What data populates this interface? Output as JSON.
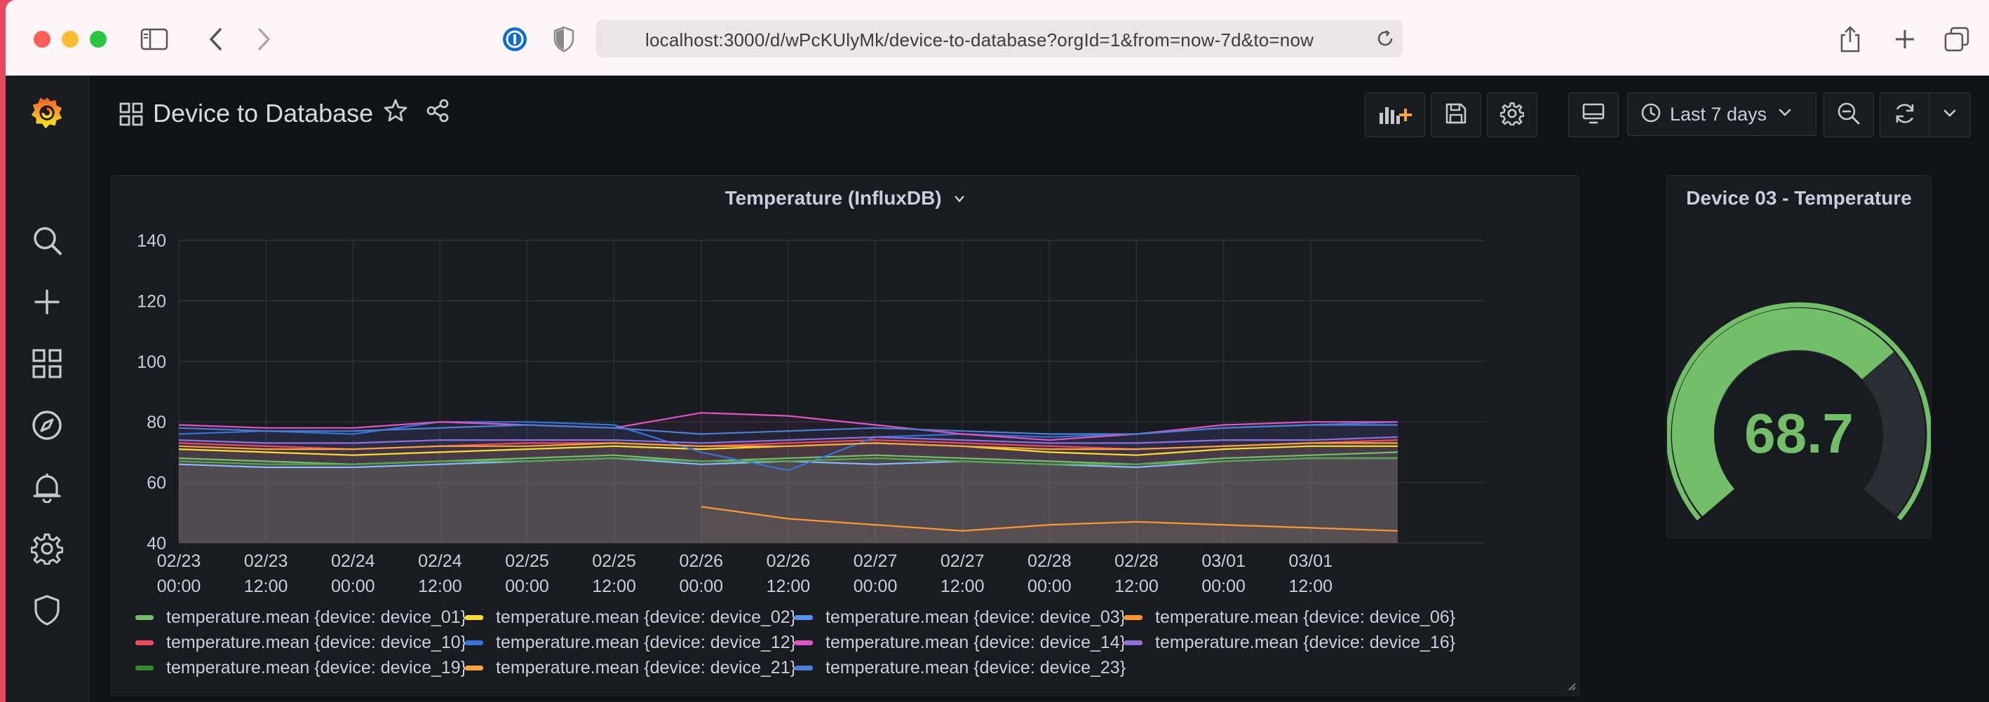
{
  "browser": {
    "url": "localhost:3000/d/wPcKUlyMk/device-to-database?orgId=1&from=now-7d&to=now"
  },
  "header": {
    "title": "Device to Database",
    "time_range": "Last 7 days"
  },
  "sidebar": {
    "items": [
      "grafana-logo-icon",
      "search-icon",
      "plus-icon",
      "dashboards-icon",
      "explore-icon",
      "alerting-icon",
      "configuration-icon",
      "server-admin-icon"
    ]
  },
  "temperature_panel": {
    "title": "Temperature (InfluxDB)",
    "legend": [
      {
        "label": "temperature.mean {device: device_01}",
        "color": "#73bf69"
      },
      {
        "label": "temperature.mean {device: device_02}",
        "color": "#fade2a"
      },
      {
        "label": "temperature.mean {device: device_03}",
        "color": "#5794f2"
      },
      {
        "label": "temperature.mean {device: device_06}",
        "color": "#ff9830"
      },
      {
        "label": "temperature.mean {device: device_10}",
        "color": "#f2495c"
      },
      {
        "label": "temperature.mean {device: device_12}",
        "color": "#3274d9"
      },
      {
        "label": "temperature.mean {device: device_14}",
        "color": "#e055c4"
      },
      {
        "label": "temperature.mean {device: device_16}",
        "color": "#8f6fd8"
      },
      {
        "label": "temperature.mean {device: device_19}",
        "color": "#37872d"
      },
      {
        "label": "temperature.mean {device: device_21}",
        "color": "#f9a43b"
      },
      {
        "label": "temperature.mean {device: device_23}",
        "color": "#4a7fd6"
      }
    ]
  },
  "chart_data": {
    "type": "line",
    "title": "Temperature (InfluxDB)",
    "ylim": [
      40,
      140
    ],
    "yticks": [
      40,
      60,
      80,
      100,
      120,
      140
    ],
    "xticks": [
      [
        "02/23",
        "00:00"
      ],
      [
        "02/23",
        "12:00"
      ],
      [
        "02/24",
        "00:00"
      ],
      [
        "02/24",
        "12:00"
      ],
      [
        "02/25",
        "00:00"
      ],
      [
        "02/25",
        "12:00"
      ],
      [
        "02/26",
        "00:00"
      ],
      [
        "02/26",
        "12:00"
      ],
      [
        "02/27",
        "00:00"
      ],
      [
        "02/27",
        "12:00"
      ],
      [
        "02/28",
        "00:00"
      ],
      [
        "02/28",
        "12:00"
      ],
      [
        "03/01",
        "00:00"
      ],
      [
        "03/01",
        "12:00"
      ]
    ],
    "grid": true,
    "legend_position": "bottom",
    "x_hours": [
      0,
      12,
      24,
      36,
      48,
      60,
      72,
      84,
      96,
      108,
      120,
      132,
      144,
      156,
      168
    ],
    "series": [
      {
        "name": "temperature.mean {device: device_01}",
        "color": "#73bf69",
        "values": [
          68,
          67,
          66,
          67,
          68,
          69,
          67,
          68,
          69,
          68,
          67,
          66,
          68,
          69,
          70
        ]
      },
      {
        "name": "temperature.mean {device: device_02}",
        "color": "#fade2a",
        "values": [
          71,
          70,
          69,
          70,
          71,
          72,
          71,
          72,
          73,
          72,
          70,
          69,
          71,
          72,
          72
        ]
      },
      {
        "name": "temperature.mean {device: device_03}",
        "color": "#8ab8ff",
        "values": [
          66,
          65,
          65,
          66,
          67,
          68,
          66,
          67,
          66,
          67,
          66,
          65,
          67,
          68,
          68
        ]
      },
      {
        "name": "temperature.mean {device: device_06}",
        "color": "#ff9830",
        "values": [
          null,
          null,
          null,
          null,
          null,
          null,
          52,
          48,
          46,
          44,
          46,
          47,
          46,
          45,
          44
        ]
      },
      {
        "name": "temperature.mean {device: device_10}",
        "color": "#f2495c",
        "values": [
          73,
          72,
          71,
          72,
          73,
          73,
          72,
          73,
          74,
          73,
          72,
          71,
          72,
          73,
          74
        ]
      },
      {
        "name": "temperature.mean {device: device_12}",
        "color": "#3274d9",
        "values": [
          76,
          77,
          76,
          80,
          80,
          79,
          70,
          64,
          75,
          76,
          75,
          76,
          78,
          79,
          80
        ]
      },
      {
        "name": "temperature.mean {device: device_14}",
        "color": "#e055c4",
        "values": [
          79,
          78,
          78,
          80,
          79,
          78,
          83,
          82,
          79,
          76,
          74,
          76,
          79,
          80,
          80
        ]
      },
      {
        "name": "temperature.mean {device: device_16}",
        "color": "#8f6fd8",
        "values": [
          74,
          73,
          73,
          74,
          74,
          74,
          73,
          74,
          75,
          74,
          73,
          73,
          74,
          74,
          75
        ]
      },
      {
        "name": "temperature.mean {device: device_19}",
        "color": "#56a64b",
        "values": [
          67,
          66,
          66,
          67,
          67,
          68,
          67,
          67,
          68,
          67,
          66,
          66,
          67,
          68,
          68
        ]
      },
      {
        "name": "temperature.mean {device: device_21}",
        "color": "#f9a43b",
        "values": [
          72,
          71,
          71,
          72,
          72,
          73,
          72,
          72,
          73,
          72,
          71,
          71,
          72,
          73,
          73
        ]
      },
      {
        "name": "temperature.mean {device: device_23}",
        "color": "#4a7fd6",
        "values": [
          78,
          77,
          77,
          78,
          79,
          78,
          76,
          77,
          78,
          77,
          76,
          76,
          78,
          79,
          79
        ]
      }
    ]
  },
  "gauge_panel": {
    "title": "Device 03 - Temperature",
    "value": "68.7",
    "min": 0,
    "max": 100,
    "color": "#73bf69"
  }
}
